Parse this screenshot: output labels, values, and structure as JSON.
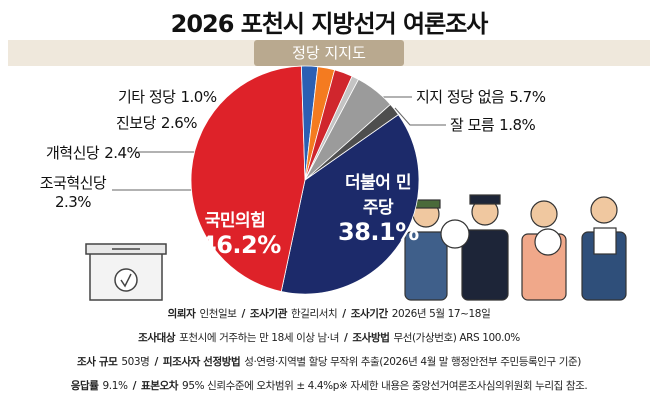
{
  "chart_data": {
    "type": "pie",
    "title": "2026 포천시 지방선거 여론조사",
    "subtitle": "정당 지지도",
    "categories": [
      "더불어 민주당",
      "국민의힘",
      "조국혁신당",
      "개혁신당",
      "진보당",
      "기타 정당",
      "지지 정당 없음",
      "잘 모름"
    ],
    "values": [
      38.1,
      46.2,
      2.3,
      2.4,
      2.6,
      1.0,
      5.7,
      1.8
    ],
    "value_labels": [
      "38.1%",
      "46.2%",
      "2.3%",
      "2.4%",
      "2.6%",
      "1.0%",
      "5.7%",
      "1.8%"
    ],
    "colors": [
      "#1c2a6a",
      "#de2229",
      "#2b5fb3",
      "#f47b20",
      "#d0262d",
      "#c4c4c4",
      "#9b9b9b",
      "#4e4e4e"
    ]
  },
  "footer": [
    [
      {
        "label": "의뢰자",
        "text": "인천일보"
      },
      {
        "label": "조사기관",
        "text": "한길리서치"
      },
      {
        "label": "조사기간",
        "text": "2026년 5월 17~18일"
      }
    ],
    [
      {
        "label": "조사대상",
        "text": "포천시에 거주하는 만 18세 이상 남·녀"
      },
      {
        "label": "조사방법",
        "text": "무선(가상번호) ARS 100.0%"
      }
    ],
    [
      {
        "label": "조사 규모",
        "text": "503명"
      },
      {
        "label": "피조사자 선정방법",
        "text": "성·연령·지역별 할당 무작위 추출(2026년 4월 말 행정안전부 주민등록인구 기준)"
      }
    ],
    [
      {
        "label": "응답률",
        "text": "9.1%"
      },
      {
        "label": "표본오차",
        "text": "95% 신뢰수준에 오차범위 ± 4.4%p※ 자세한 내용은 중앙선거여론조사심의위원회 누리집 참조."
      }
    ]
  ]
}
